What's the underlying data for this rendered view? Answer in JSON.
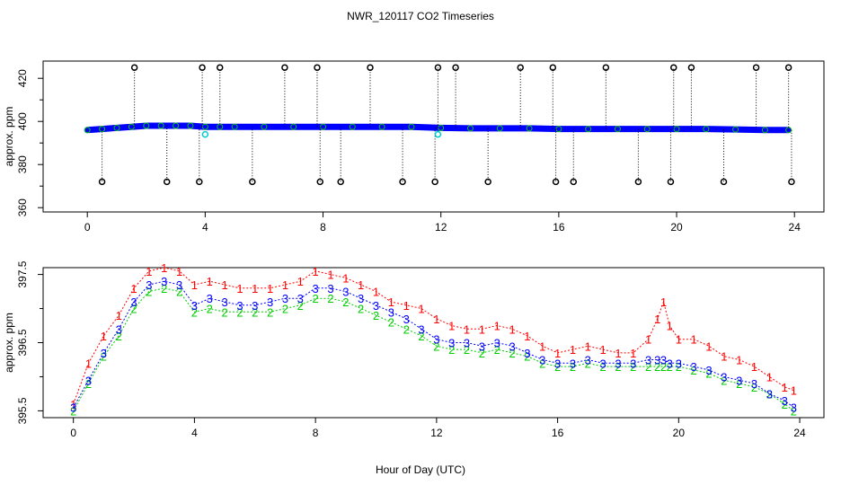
{
  "title": "NWR_120117  CO2 Timeseries",
  "xlabel": "Hour of Day (UTC)",
  "colors": {
    "series1": "#ff0000",
    "series2": "#00cc00",
    "series3": "#0000ff",
    "flagged": "#000000",
    "flagged_alt": "#00cccc",
    "axis": "#000000",
    "background": "#ffffff"
  },
  "chart_data": [
    {
      "type": "scatter",
      "panel": "top",
      "title": "",
      "xlabel": "",
      "ylabel": "approx. ppm",
      "xlim": [
        -1.5,
        25
      ],
      "ylim": [
        358,
        428
      ],
      "xticks": [
        0,
        4,
        8,
        12,
        16,
        20,
        24
      ],
      "xtick_labels": [
        "0",
        "4",
        "8",
        "12",
        "16",
        "20",
        "24"
      ],
      "yticks": [
        360,
        380,
        400,
        420
      ],
      "ytick_labels": [
        "360",
        "380",
        "400",
        "420"
      ],
      "yminor_ticks": [
        370,
        390,
        410
      ],
      "baseline_series": [
        {
          "name": "3",
          "color": "#0000ff",
          "x": [
            0,
            0.5,
            1,
            1.5,
            2,
            2.5,
            3,
            3.5,
            4,
            4.5,
            5,
            6,
            7,
            8,
            9,
            10,
            11,
            12,
            13,
            14,
            15,
            16,
            17,
            18,
            19,
            20,
            21,
            22,
            23,
            23.8
          ],
          "values": [
            396,
            396.5,
            397,
            397.5,
            398,
            398,
            398,
            398,
            397.5,
            397.5,
            397.5,
            397.5,
            397.5,
            397.5,
            397.5,
            397.5,
            397.5,
            397,
            396.8,
            396.8,
            396.8,
            396.5,
            396.5,
            396.5,
            396.5,
            396.5,
            396.5,
            396.3,
            396,
            396
          ]
        }
      ],
      "flagged_points": {
        "color": "#000000",
        "marker": "o",
        "x": [
          0.5,
          1.6,
          2.7,
          3.8,
          3.9,
          4.5,
          5.6,
          6.7,
          7.8,
          7.9,
          8.6,
          9.6,
          10.7,
          11.8,
          11.9,
          12.5,
          13.6,
          14.7,
          15.8,
          15.9,
          16.5,
          17.6,
          18.7,
          19.8,
          19.9,
          20.5,
          21.6,
          22.7,
          23.8,
          23.9
        ],
        "values": [
          372,
          425,
          372,
          372,
          425,
          425,
          372,
          425,
          425,
          372,
          372,
          425,
          372,
          372,
          425,
          425,
          372,
          425,
          425,
          372,
          372,
          425,
          372,
          372,
          425,
          425,
          372,
          425,
          425,
          372
        ]
      },
      "highlight_points": {
        "color": "#00cccc",
        "x": [
          4.0,
          11.9
        ],
        "values": [
          394,
          394
        ]
      }
    },
    {
      "type": "line",
      "panel": "bottom",
      "title": "",
      "xlabel": "Hour of Day (UTC)",
      "ylabel": "approx. ppm",
      "xlim": [
        -1.0,
        24.8
      ],
      "ylim": [
        395.4,
        397.6
      ],
      "xticks": [
        0,
        4,
        8,
        12,
        16,
        20,
        24
      ],
      "xtick_labels": [
        "0",
        "4",
        "8",
        "12",
        "16",
        "20",
        "24"
      ],
      "yticks": [
        395.5,
        396.5,
        397.5
      ],
      "ytick_labels": [
        "395.5",
        "396.5",
        "397.5"
      ],
      "yminor_ticks": [
        396.0,
        397.0
      ],
      "x": [
        0,
        0.5,
        1,
        1.5,
        2,
        2.5,
        3,
        3.5,
        4,
        4.5,
        5,
        5.5,
        6,
        6.5,
        7,
        7.5,
        8,
        8.5,
        9,
        9.5,
        10,
        10.5,
        11,
        11.5,
        12,
        12.5,
        13,
        13.5,
        14,
        14.5,
        15,
        15.5,
        16,
        16.5,
        17,
        17.5,
        18,
        18.5,
        19,
        19.3,
        19.5,
        19.7,
        20,
        20.5,
        21,
        21.5,
        22,
        22.5,
        23,
        23.5,
        23.8
      ],
      "series": [
        {
          "name": "1",
          "color": "#ff0000",
          "values": [
            395.6,
            396.2,
            396.6,
            396.9,
            397.3,
            397.55,
            397.6,
            397.55,
            397.35,
            397.4,
            397.35,
            397.3,
            397.3,
            397.3,
            397.35,
            397.4,
            397.55,
            397.5,
            397.45,
            397.35,
            397.25,
            397.1,
            397.05,
            397,
            396.85,
            396.75,
            396.7,
            396.7,
            396.75,
            396.7,
            396.6,
            396.45,
            396.35,
            396.4,
            396.45,
            396.4,
            396.35,
            396.35,
            396.55,
            396.85,
            397.1,
            396.75,
            396.55,
            396.55,
            396.45,
            396.3,
            396.25,
            396.15,
            396.0,
            395.85,
            395.8
          ]
        },
        {
          "name": "2",
          "color": "#00cc00",
          "values": [
            395.5,
            395.9,
            396.3,
            396.6,
            397.0,
            397.25,
            397.3,
            397.25,
            396.95,
            397.0,
            396.95,
            396.95,
            396.95,
            396.95,
            397.0,
            397.05,
            397.15,
            397.15,
            397.1,
            397.0,
            396.9,
            396.8,
            396.7,
            396.6,
            396.45,
            396.4,
            396.4,
            396.35,
            396.4,
            396.35,
            396.3,
            396.2,
            396.15,
            396.15,
            396.2,
            396.15,
            396.15,
            396.15,
            396.15,
            396.15,
            396.15,
            396.15,
            396.15,
            396.1,
            396.05,
            395.95,
            395.9,
            395.85,
            395.75,
            395.6,
            395.5
          ]
        },
        {
          "name": "3",
          "color": "#0000ff",
          "values": [
            395.55,
            395.95,
            396.35,
            396.7,
            397.1,
            397.35,
            397.4,
            397.35,
            397.05,
            397.15,
            397.1,
            397.05,
            397.05,
            397.1,
            397.15,
            397.15,
            397.3,
            397.3,
            397.25,
            397.15,
            397.05,
            396.95,
            396.85,
            396.7,
            396.55,
            396.5,
            396.5,
            396.45,
            396.5,
            396.45,
            396.35,
            396.25,
            396.2,
            396.2,
            396.25,
            396.2,
            396.2,
            396.2,
            396.25,
            396.25,
            396.25,
            396.2,
            396.2,
            396.15,
            396.1,
            396.0,
            395.95,
            395.9,
            395.75,
            395.65,
            395.55
          ]
        }
      ]
    }
  ]
}
